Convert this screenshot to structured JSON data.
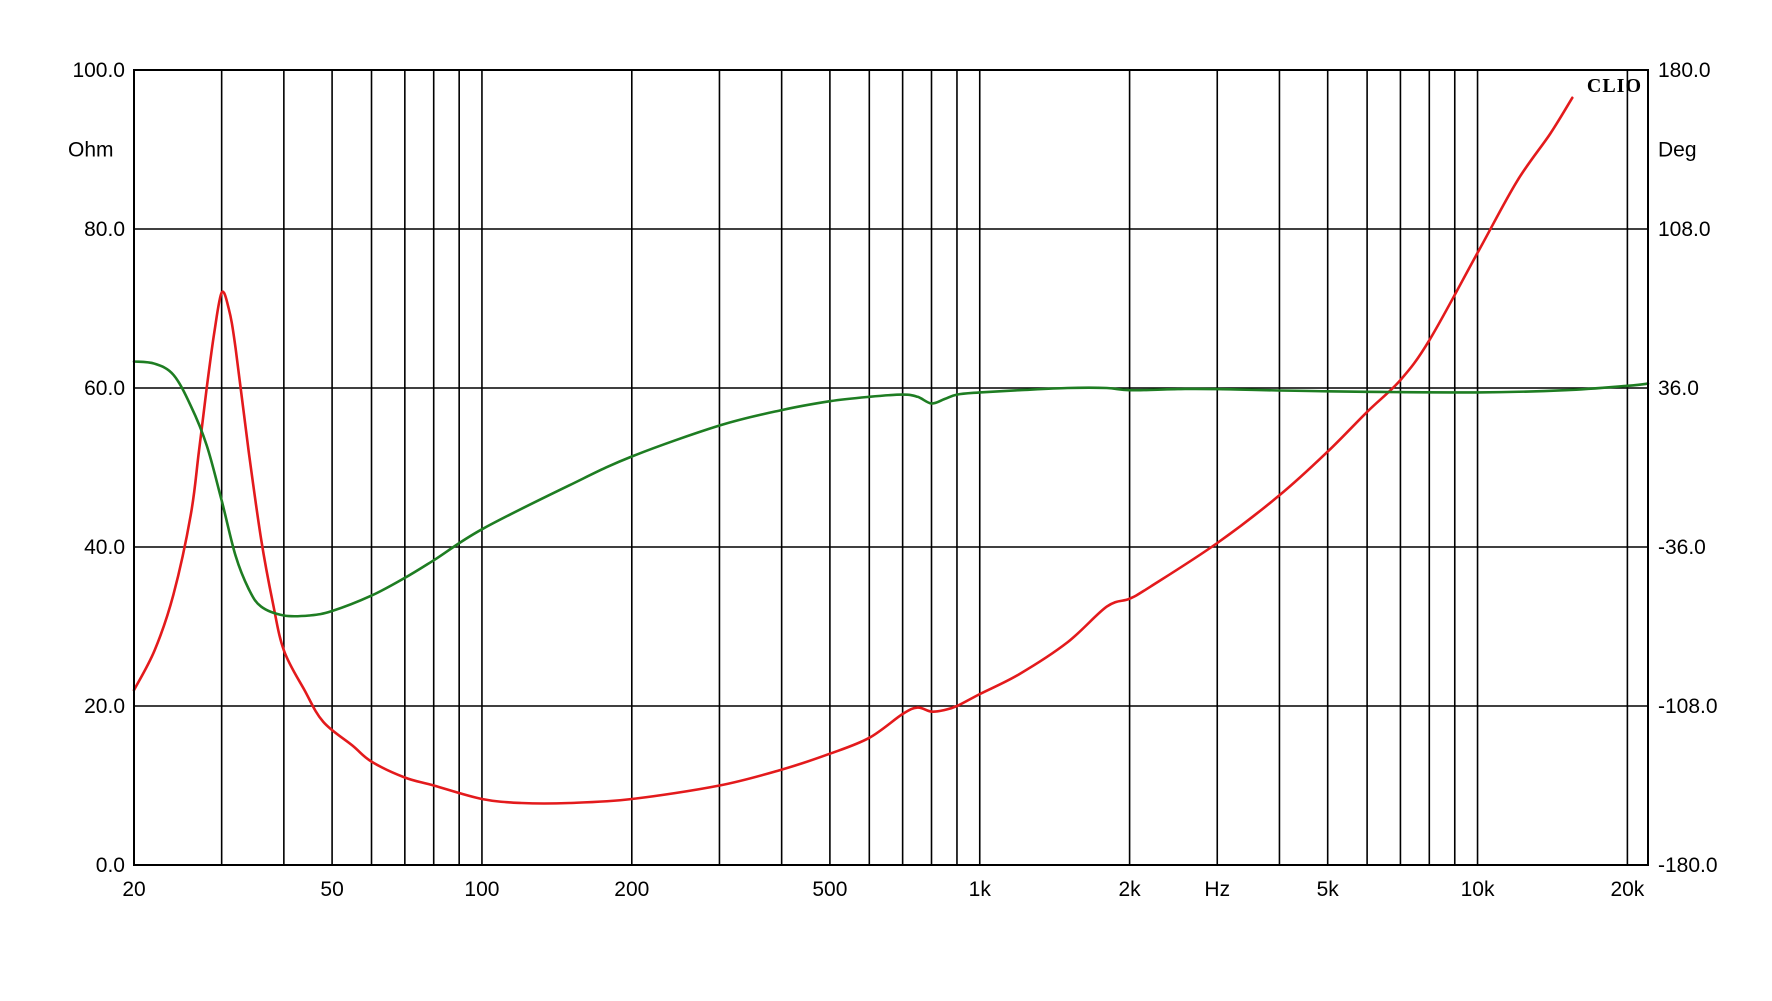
{
  "chart_data": {
    "type": "line",
    "brand": "CLIO",
    "x_scale": "log",
    "xlim": [
      20,
      22000
    ],
    "ylim_left": [
      0,
      100
    ],
    "ylim_right": [
      -180,
      180
    ],
    "left_unit": "Ohm",
    "right_unit": "Deg",
    "x_unit": "Hz",
    "grid": true,
    "left_ticks": [
      {
        "value": 0,
        "label": "0.0"
      },
      {
        "value": 20,
        "label": "20.0"
      },
      {
        "value": 40,
        "label": "40.0"
      },
      {
        "value": 60,
        "label": "60.0"
      },
      {
        "value": 80,
        "label": "80.0"
      },
      {
        "value": 100,
        "label": "100.0"
      }
    ],
    "right_ticks": [
      {
        "value": -180,
        "label": "-180.0"
      },
      {
        "value": -108,
        "label": "-108.0"
      },
      {
        "value": -36,
        "label": "-36.0"
      },
      {
        "value": 36,
        "label": "36.0"
      },
      {
        "value": 108,
        "label": "108.0"
      },
      {
        "value": 180,
        "label": "180.0"
      }
    ],
    "x_tick_labels": [
      {
        "value": 20,
        "label": "20"
      },
      {
        "value": 50,
        "label": "50"
      },
      {
        "value": 100,
        "label": "100"
      },
      {
        "value": 200,
        "label": "200"
      },
      {
        "value": 500,
        "label": "500"
      },
      {
        "value": 1000,
        "label": "1k"
      },
      {
        "value": 2000,
        "label": "2k"
      },
      {
        "value": 5000,
        "label": "5k"
      },
      {
        "value": 10000,
        "label": "10k"
      },
      {
        "value": 20000,
        "label": "20k"
      }
    ],
    "x_unit_position": 3000,
    "x_gridlines": [
      30,
      40,
      50,
      60,
      70,
      80,
      90,
      100,
      200,
      300,
      400,
      500,
      600,
      700,
      800,
      900,
      1000,
      2000,
      3000,
      4000,
      5000,
      6000,
      7000,
      8000,
      9000,
      10000,
      20000
    ],
    "series": [
      {
        "axis": "left",
        "color": "#e31a1c",
        "points": [
          [
            20,
            22
          ],
          [
            22,
            27
          ],
          [
            24,
            34
          ],
          [
            26,
            44
          ],
          [
            27,
            52
          ],
          [
            28,
            60
          ],
          [
            29,
            67
          ],
          [
            30,
            72
          ],
          [
            31,
            70
          ],
          [
            32,
            65
          ],
          [
            34,
            52
          ],
          [
            36,
            41
          ],
          [
            38,
            33
          ],
          [
            40,
            27
          ],
          [
            44,
            22
          ],
          [
            48,
            18
          ],
          [
            55,
            15
          ],
          [
            60,
            13
          ],
          [
            70,
            11
          ],
          [
            80,
            10
          ],
          [
            100,
            8.3
          ],
          [
            120,
            7.8
          ],
          [
            150,
            7.8
          ],
          [
            200,
            8.3
          ],
          [
            300,
            10
          ],
          [
            400,
            12
          ],
          [
            500,
            14
          ],
          [
            600,
            16
          ],
          [
            700,
            19
          ],
          [
            750,
            19.8
          ],
          [
            800,
            19.3
          ],
          [
            850,
            19.5
          ],
          [
            900,
            20
          ],
          [
            1000,
            21.5
          ],
          [
            1200,
            24
          ],
          [
            1500,
            28
          ],
          [
            1800,
            32.5
          ],
          [
            2000,
            33.5
          ],
          [
            2200,
            35
          ],
          [
            3000,
            40.5
          ],
          [
            4000,
            46.5
          ],
          [
            5000,
            52
          ],
          [
            6000,
            57
          ],
          [
            7000,
            61
          ],
          [
            8000,
            66
          ],
          [
            10000,
            77
          ],
          [
            12000,
            86
          ],
          [
            14000,
            92
          ],
          [
            15500,
            96.5
          ]
        ]
      },
      {
        "axis": "right",
        "color": "#1e7d22",
        "points": [
          [
            20,
            48
          ],
          [
            22,
            47
          ],
          [
            24,
            42
          ],
          [
            26,
            28
          ],
          [
            28,
            10
          ],
          [
            30,
            -15
          ],
          [
            32,
            -40
          ],
          [
            34,
            -55
          ],
          [
            36,
            -63
          ],
          [
            40,
            -67
          ],
          [
            45,
            -67
          ],
          [
            50,
            -65
          ],
          [
            60,
            -58
          ],
          [
            70,
            -50
          ],
          [
            80,
            -42
          ],
          [
            100,
            -28
          ],
          [
            150,
            -8
          ],
          [
            200,
            5
          ],
          [
            300,
            19
          ],
          [
            400,
            26
          ],
          [
            500,
            30
          ],
          [
            600,
            32
          ],
          [
            700,
            33
          ],
          [
            750,
            32
          ],
          [
            800,
            29
          ],
          [
            850,
            31
          ],
          [
            900,
            33
          ],
          [
            1000,
            34
          ],
          [
            1200,
            35
          ],
          [
            1500,
            36
          ],
          [
            1800,
            36
          ],
          [
            2000,
            35
          ],
          [
            2500,
            35.5
          ],
          [
            3000,
            35.5
          ],
          [
            5000,
            34.5
          ],
          [
            10000,
            34
          ],
          [
            15000,
            35
          ],
          [
            20000,
            37
          ],
          [
            22000,
            38
          ]
        ]
      }
    ]
  }
}
